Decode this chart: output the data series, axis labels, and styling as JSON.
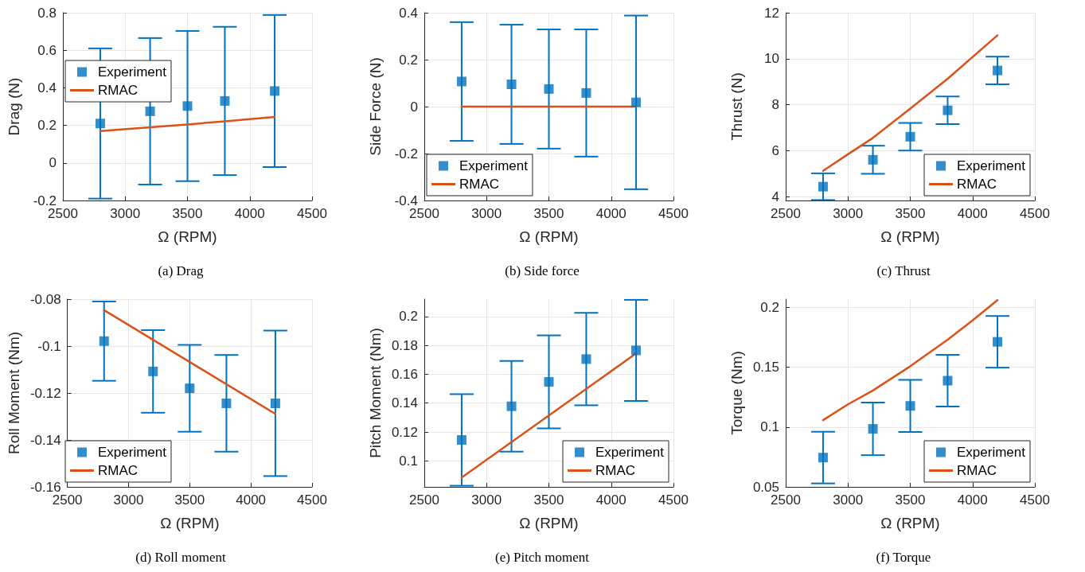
{
  "chart_data": [
    {
      "type": "scatter",
      "xlabel": "Ω (RPM)",
      "ylabel": "Drag (N)",
      "annotations": [
        "(a) Drag"
      ],
      "xlim": [
        2500,
        4500
      ],
      "xticks": [
        2500,
        3000,
        3500,
        4000,
        4500
      ],
      "ylim": [
        -0.2,
        0.8
      ],
      "yticks": [
        -0.2,
        0,
        0.2,
        0.4,
        0.6,
        0.8
      ],
      "grid": true,
      "legend": "left",
      "series": [
        {
          "name": "Experiment",
          "type": "scatter",
          "color": "#0072bd",
          "marker": "square",
          "x": [
            2800,
            3200,
            3500,
            3800,
            4200
          ],
          "values": [
            0.21,
            0.275,
            0.303,
            0.33,
            0.383
          ],
          "errors": [
            0.4,
            0.39,
            0.4,
            0.395,
            0.405
          ]
        },
        {
          "name": "RMAC",
          "type": "line",
          "color": "#d95319",
          "marker": "none",
          "line_style": "solid",
          "x": [
            2800,
            3200,
            3500,
            3800,
            4200
          ],
          "values": [
            0.17,
            0.19,
            0.205,
            0.222,
            0.245
          ]
        }
      ]
    },
    {
      "type": "scatter",
      "xlabel": "Ω (RPM)",
      "ylabel": "Side Force (N)",
      "annotations": [
        "(b) Side force"
      ],
      "xlim": [
        2500,
        4500
      ],
      "xticks": [
        2500,
        3000,
        3500,
        4000,
        4500
      ],
      "ylim": [
        -0.4,
        0.4
      ],
      "yticks": [
        -0.4,
        -0.2,
        0,
        0.2,
        0.4
      ],
      "grid": true,
      "legend": "bottom left",
      "series": [
        {
          "name": "Experiment",
          "type": "scatter",
          "color": "#0072bd",
          "marker": "square",
          "x": [
            2800,
            3200,
            3500,
            3800,
            4200
          ],
          "values": [
            0.107,
            0.095,
            0.075,
            0.058,
            0.018
          ],
          "errors": [
            0.253,
            0.254,
            0.254,
            0.271,
            0.37
          ]
        },
        {
          "name": "RMAC",
          "type": "line",
          "color": "#d95319",
          "marker": "none",
          "line_style": "solid",
          "x": [
            2800,
            4200
          ],
          "values": [
            0,
            0
          ]
        }
      ]
    },
    {
      "type": "scatter",
      "xlabel": "Ω (RPM)",
      "ylabel": "Thrust (N)",
      "annotations": [
        "(c) Thrust"
      ],
      "xlim": [
        2500,
        4500
      ],
      "xticks": [
        2500,
        3000,
        3500,
        4000,
        4500
      ],
      "ylim": [
        3.84,
        12
      ],
      "yticks": [
        4,
        6,
        8,
        10,
        12
      ],
      "grid": true,
      "legend": "bottom right",
      "series": [
        {
          "name": "Experiment",
          "type": "scatter",
          "color": "#0072bd",
          "marker": "square",
          "x": [
            2800,
            3200,
            3500,
            3800,
            4200
          ],
          "values": [
            4.44,
            5.61,
            6.61,
            7.76,
            9.49
          ],
          "errors": [
            0.58,
            0.61,
            0.6,
            0.6,
            0.6
          ]
        },
        {
          "name": "RMAC",
          "type": "line",
          "color": "#d95319",
          "marker": "none",
          "line_style": "solid",
          "x": [
            2800,
            3000,
            3200,
            3500,
            3800,
            4200
          ],
          "values": [
            5.13,
            5.85,
            6.56,
            7.83,
            9.13,
            11.02
          ]
        }
      ]
    },
    {
      "type": "scatter",
      "xlabel": "Ω (RPM)",
      "ylabel": "Roll Moment (Nm)",
      "annotations": [
        "(d) Roll moment"
      ],
      "xlim": [
        2500,
        4500
      ],
      "xticks": [
        2500,
        3000,
        3500,
        4000,
        4500
      ],
      "ylim": [
        -0.16,
        -0.08
      ],
      "yticks": [
        -0.16,
        -0.14,
        -0.12,
        -0.1,
        -0.08
      ],
      "grid": true,
      "legend": "bottom left",
      "series": [
        {
          "name": "Experiment",
          "type": "scatter",
          "color": "#0072bd",
          "marker": "square",
          "x": [
            2800,
            3200,
            3500,
            3800,
            4200
          ],
          "values": [
            -0.0979,
            -0.1108,
            -0.118,
            -0.1244,
            -0.1244
          ],
          "errors": [
            0.0169,
            0.0176,
            0.0185,
            0.0206,
            0.031
          ]
        },
        {
          "name": "RMAC",
          "type": "line",
          "color": "#d95319",
          "marker": "none",
          "line_style": "solid",
          "x": [
            2800,
            4200
          ],
          "values": [
            -0.0847,
            -0.1289
          ]
        }
      ]
    },
    {
      "type": "scatter",
      "xlabel": "Ω (RPM)",
      "ylabel": "Pitch Moment (Nm)",
      "annotations": [
        "(e) Pitch moment"
      ],
      "xlim": [
        2500,
        4500
      ],
      "xticks": [
        2500,
        3000,
        3500,
        4000,
        4500
      ],
      "ylim": [
        0.082,
        0.212
      ],
      "yticks": [
        0.1,
        0.12,
        0.14,
        0.16,
        0.18,
        0.2
      ],
      "grid": true,
      "legend": "bottom right",
      "series": [
        {
          "name": "Experiment",
          "type": "scatter",
          "color": "#0072bd",
          "marker": "square",
          "x": [
            2800,
            3200,
            3500,
            3800,
            4200
          ],
          "values": [
            0.1145,
            0.1378,
            0.1547,
            0.1705,
            0.1765
          ],
          "errors": [
            0.0317,
            0.0314,
            0.0322,
            0.032,
            0.035
          ]
        },
        {
          "name": "RMAC",
          "type": "line",
          "color": "#d95319",
          "marker": "none",
          "line_style": "solid",
          "x": [
            2800,
            4200
          ],
          "values": [
            0.0885,
            0.1744
          ]
        }
      ]
    },
    {
      "type": "scatter",
      "xlabel": "Ω (RPM)",
      "ylabel": "Torque (Nm)",
      "annotations": [
        "(f) Torque"
      ],
      "xlim": [
        2500,
        4500
      ],
      "xticks": [
        2500,
        3000,
        3500,
        4000,
        4500
      ],
      "ylim": [
        0.05,
        0.207
      ],
      "yticks": [
        0.05,
        0.1,
        0.15,
        0.2
      ],
      "grid": true,
      "legend": "bottom right",
      "series": [
        {
          "name": "Experiment",
          "type": "scatter",
          "color": "#0072bd",
          "marker": "square",
          "x": [
            2800,
            3200,
            3500,
            3800,
            4200
          ],
          "values": [
            0.0745,
            0.0985,
            0.1177,
            0.1388,
            0.1713
          ],
          "errors": [
            0.0216,
            0.022,
            0.0218,
            0.0216,
            0.0216
          ]
        },
        {
          "name": "RMAC",
          "type": "line",
          "color": "#d95319",
          "marker": "none",
          "line_style": "solid",
          "x": [
            2800,
            3000,
            3200,
            3500,
            3800,
            4000,
            4200
          ],
          "values": [
            0.1058,
            0.119,
            0.1306,
            0.1509,
            0.1731,
            0.1892,
            0.2062
          ]
        }
      ]
    }
  ]
}
